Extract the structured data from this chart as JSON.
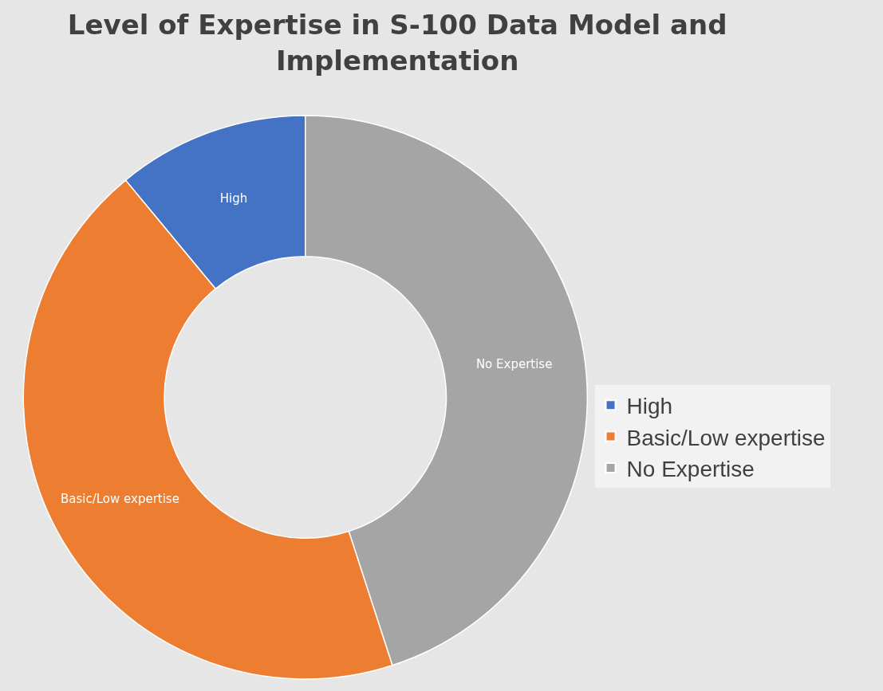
{
  "chart_data": {
    "type": "donut",
    "title": "Level of Expertise in S-100 Data Model and Implementation",
    "categories": [
      "High",
      "Basic/Low expertise",
      "No Expertise"
    ],
    "values": [
      11,
      44,
      45
    ],
    "colors": [
      "#4472c4",
      "#ed7d31",
      "#a5a5a5"
    ],
    "legend": "right"
  }
}
